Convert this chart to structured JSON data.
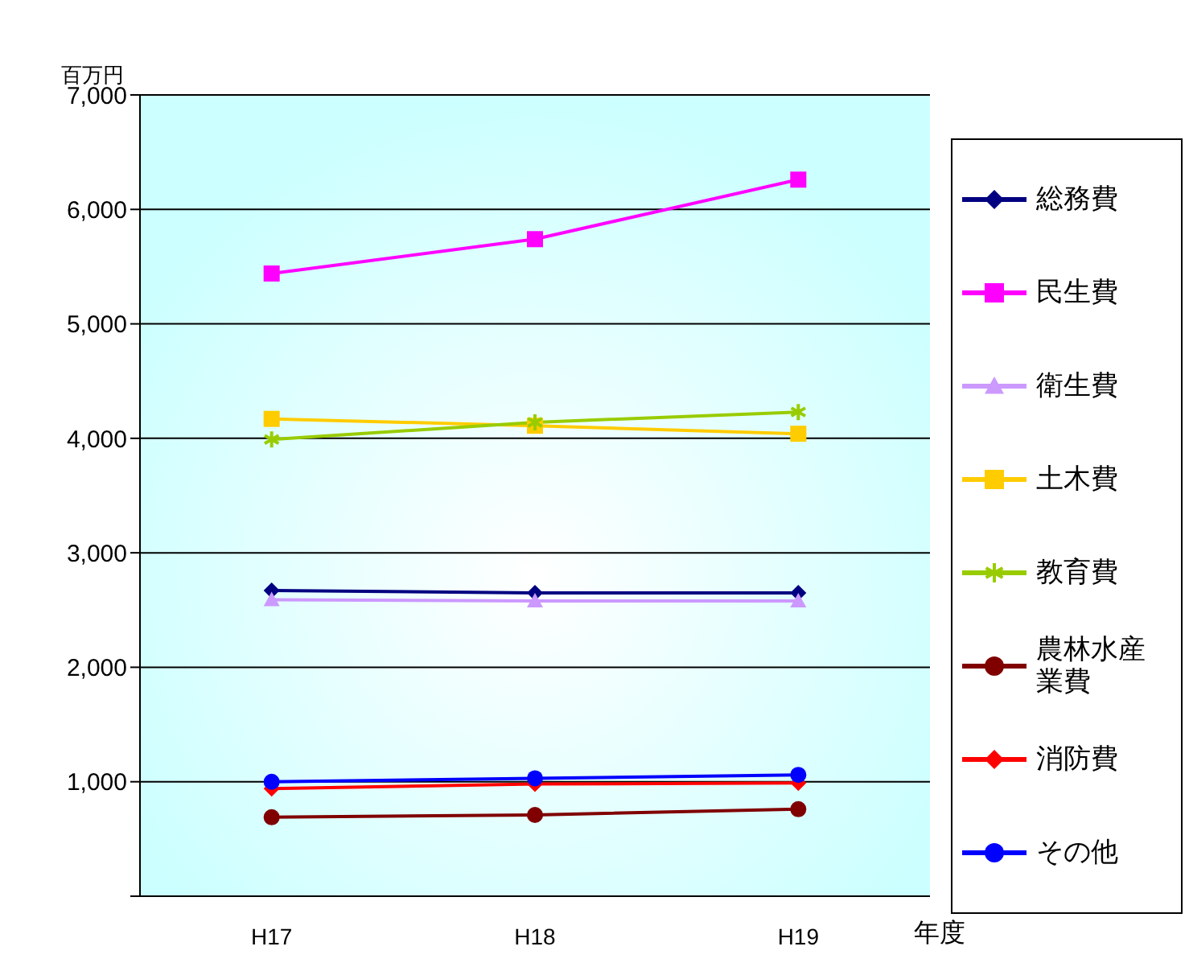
{
  "chart_data": {
    "type": "line",
    "ylabel": "百万円",
    "xlabel": "年度",
    "categories": [
      "H17",
      "H18",
      "H19"
    ],
    "series": [
      {
        "name": "総務費",
        "color": "#000080",
        "marker": "diamond",
        "values": [
          2670,
          2650,
          2650
        ]
      },
      {
        "name": "民生費",
        "color": "#ff00ff",
        "marker": "square",
        "values": [
          5440,
          5740,
          6260
        ]
      },
      {
        "name": "衛生費",
        "color": "#cc99ff",
        "marker": "triangle",
        "values": [
          2590,
          2580,
          2580
        ]
      },
      {
        "name": "土木費",
        "color": "#ffcc00",
        "marker": "square",
        "values": [
          4170,
          4110,
          4040
        ]
      },
      {
        "name": "教育費",
        "color": "#99cc00",
        "marker": "cross",
        "values": [
          3990,
          4140,
          4230
        ]
      },
      {
        "name": "農林水産業費",
        "color": "#800000",
        "marker": "circle",
        "values": [
          690,
          710,
          760
        ]
      },
      {
        "name": "消防費",
        "color": "#ff0000",
        "marker": "diamond",
        "values": [
          940,
          980,
          990
        ]
      },
      {
        "name": "その他",
        "color": "#0000ff",
        "marker": "circle",
        "values": [
          1000,
          1030,
          1060
        ]
      }
    ],
    "ylim": [
      0,
      7000
    ],
    "yticks": [
      {
        "value": 0,
        "label": null
      },
      {
        "value": 1000,
        "label": "1,000"
      },
      {
        "value": 2000,
        "label": "2,000"
      },
      {
        "value": 3000,
        "label": "3,000"
      },
      {
        "value": 4000,
        "label": "4,000"
      },
      {
        "value": 5000,
        "label": "5,000"
      },
      {
        "value": 6000,
        "label": "6,000"
      },
      {
        "value": 7000,
        "label": "7,000"
      }
    ],
    "grid": "y",
    "legend": "right",
    "line_style": "solid"
  }
}
